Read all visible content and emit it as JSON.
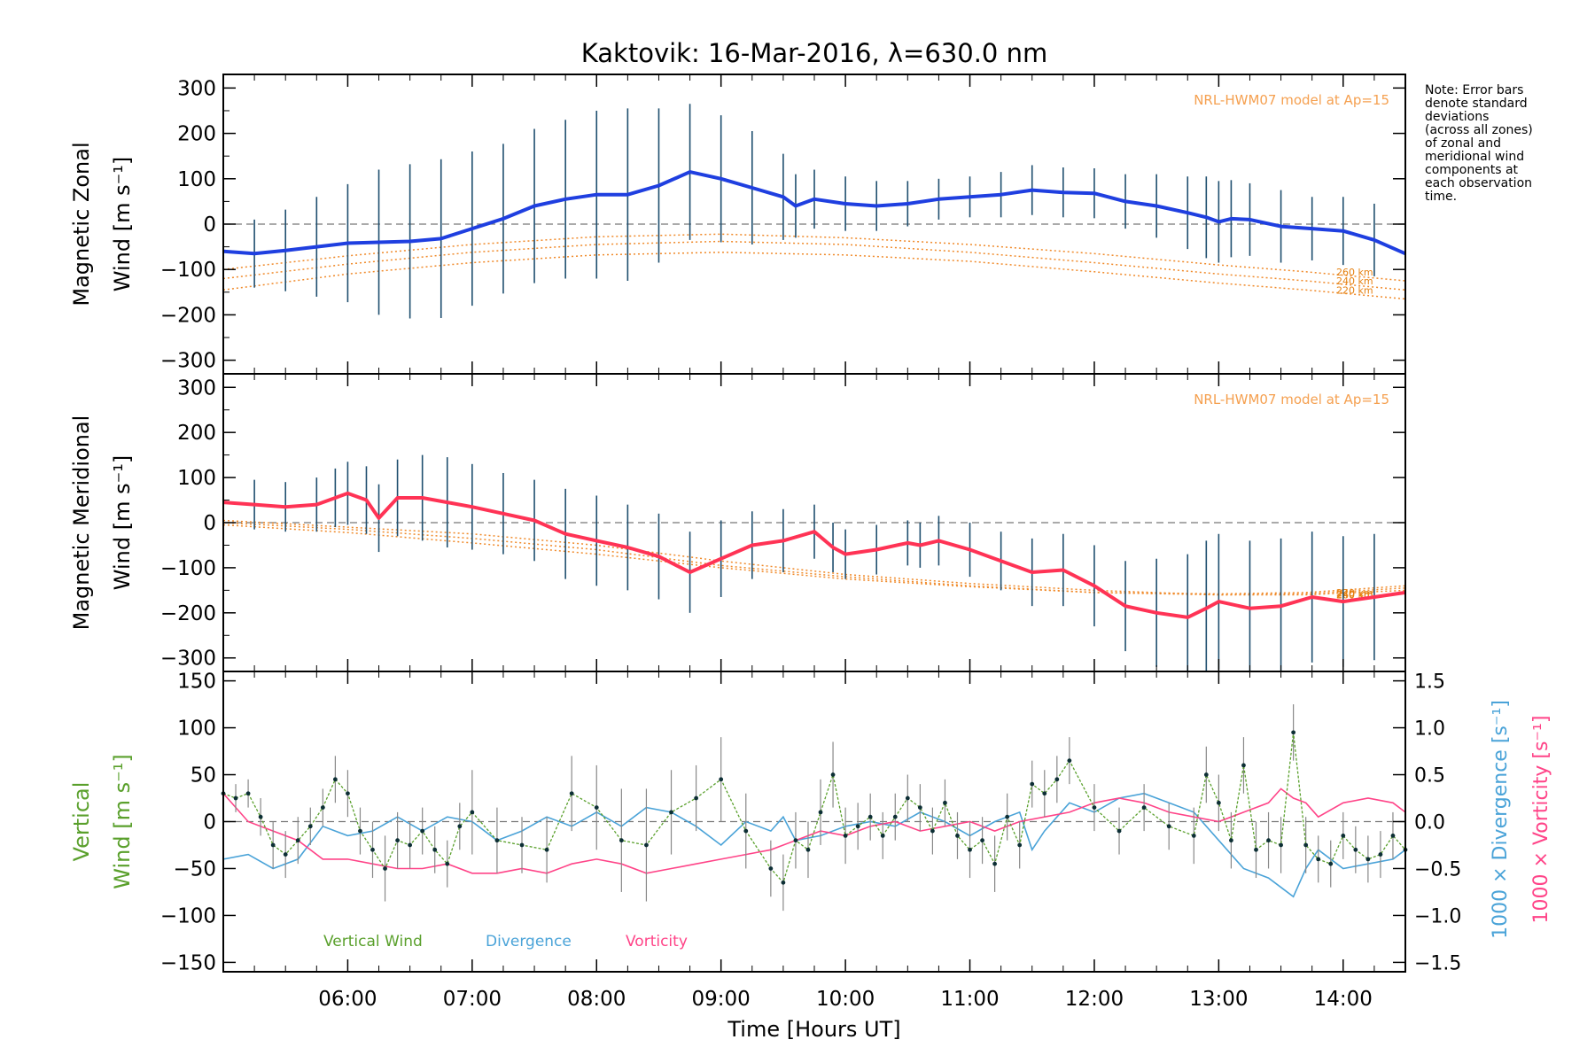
{
  "chart_data": {
    "type": "line",
    "title": "Kaktovik: 16-Mar-2016, λ=630.0 nm",
    "xlabel": "Time [Hours UT]",
    "x_ticks": [
      "06:00",
      "07:00",
      "08:00",
      "09:00",
      "10:00",
      "11:00",
      "12:00",
      "13:00",
      "14:00"
    ],
    "x_range": [
      5.0,
      14.5
    ],
    "note": [
      "Note: Error bars",
      "denote standard",
      "deviations",
      "(across all zones)",
      "of zonal and",
      "meridional wind",
      "components at",
      "each observation",
      "time."
    ],
    "panels": [
      {
        "id": "zonal",
        "ylabel": [
          "Magnetic Zonal",
          "Wind [m s⁻¹]"
        ],
        "ylim": [
          -330,
          330
        ],
        "yticks": [
          300,
          200,
          100,
          0,
          -100,
          -200,
          -300
        ],
        "model_label": "NRL-HWM07 model at Ap=15",
        "model_alt_labels": [
          "260 km",
          "240 km",
          "220 km"
        ],
        "series": {
          "color": "#1f3fe0",
          "x": [
            5.0,
            5.25,
            5.5,
            5.75,
            6.0,
            6.25,
            6.5,
            6.75,
            7.0,
            7.25,
            7.5,
            7.75,
            8.0,
            8.25,
            8.5,
            8.75,
            9.0,
            9.25,
            9.5,
            9.6,
            9.75,
            10.0,
            10.25,
            10.5,
            10.75,
            11.0,
            11.25,
            11.5,
            11.75,
            12.0,
            12.25,
            12.5,
            12.75,
            12.9,
            13.0,
            13.1,
            13.25,
            13.5,
            13.75,
            14.0,
            14.25,
            14.5
          ],
          "y": [
            -60,
            -65,
            -58,
            -50,
            -42,
            -40,
            -38,
            -32,
            -10,
            12,
            40,
            55,
            65,
            65,
            85,
            115,
            100,
            80,
            60,
            40,
            55,
            45,
            40,
            45,
            55,
            60,
            65,
            75,
            70,
            68,
            50,
            40,
            25,
            15,
            5,
            12,
            10,
            -5,
            -10,
            -15,
            -35,
            -65
          ],
          "err": [
            70,
            75,
            90,
            110,
            130,
            160,
            170,
            175,
            170,
            165,
            170,
            175,
            185,
            190,
            170,
            150,
            140,
            125,
            95,
            70,
            65,
            60,
            55,
            50,
            45,
            45,
            50,
            55,
            55,
            55,
            60,
            70,
            80,
            90,
            90,
            85,
            80,
            80,
            70,
            75,
            80,
            85
          ]
        },
        "model_curves": [
          {
            "alt": "260 km",
            "x": [
              5.0,
              6.0,
              7.0,
              8.0,
              9.0,
              10.0,
              11.0,
              12.0,
              13.0,
              13.7,
              14.5
            ],
            "y": [
              -100,
              -70,
              -45,
              -28,
              -22,
              -30,
              -45,
              -65,
              -90,
              -105,
              -125
            ]
          },
          {
            "alt": "240 km",
            "x": [
              5.0,
              6.0,
              7.0,
              8.0,
              9.0,
              10.0,
              11.0,
              12.0,
              13.0,
              13.7,
              14.5
            ],
            "y": [
              -120,
              -88,
              -62,
              -45,
              -38,
              -45,
              -62,
              -85,
              -110,
              -125,
              -145
            ]
          },
          {
            "alt": "220 km",
            "x": [
              5.0,
              6.0,
              7.0,
              8.0,
              9.0,
              10.0,
              11.0,
              12.0,
              13.0,
              13.7,
              14.5
            ],
            "y": [
              -145,
              -110,
              -85,
              -68,
              -62,
              -68,
              -82,
              -105,
              -130,
              -145,
              -165
            ]
          }
        ]
      },
      {
        "id": "meridional",
        "ylabel": [
          "Magnetic Meridional",
          "Wind [m s⁻¹]"
        ],
        "ylim": [
          -330,
          330
        ],
        "yticks": [
          300,
          200,
          100,
          0,
          -100,
          -200,
          -300
        ],
        "model_label": "NRL-HWM07 model at Ap=15",
        "model_alt_labels": [
          "260 km",
          "240 km",
          "220 km"
        ],
        "series": {
          "color": "#ff3355",
          "x": [
            5.0,
            5.25,
            5.5,
            5.75,
            5.9,
            6.0,
            6.15,
            6.25,
            6.4,
            6.6,
            6.8,
            7.0,
            7.25,
            7.5,
            7.75,
            8.0,
            8.25,
            8.5,
            8.75,
            9.0,
            9.25,
            9.5,
            9.75,
            9.9,
            10.0,
            10.25,
            10.5,
            10.6,
            10.75,
            11.0,
            11.25,
            11.5,
            11.75,
            12.0,
            12.25,
            12.5,
            12.75,
            12.9,
            13.0,
            13.25,
            13.5,
            13.75,
            14.0,
            14.25,
            14.5
          ],
          "y": [
            45,
            40,
            35,
            40,
            55,
            65,
            50,
            10,
            55,
            55,
            45,
            35,
            20,
            5,
            -25,
            -40,
            -55,
            -75,
            -110,
            -80,
            -50,
            -40,
            -20,
            -55,
            -70,
            -60,
            -45,
            -50,
            -40,
            -60,
            -85,
            -110,
            -105,
            -140,
            -185,
            -200,
            -210,
            -190,
            -175,
            -190,
            -185,
            -165,
            -175,
            -165,
            -155
          ],
          "err": [
            50,
            55,
            55,
            60,
            65,
            70,
            75,
            75,
            85,
            95,
            100,
            95,
            90,
            90,
            100,
            100,
            95,
            95,
            90,
            85,
            75,
            70,
            60,
            55,
            55,
            55,
            50,
            50,
            55,
            60,
            65,
            75,
            80,
            90,
            100,
            120,
            140,
            150,
            150,
            150,
            150,
            145,
            145,
            140,
            140
          ]
        },
        "model_curves": [
          {
            "alt": "260 km",
            "x": [
              5.0,
              6.0,
              7.0,
              8.0,
              9.0,
              10.0,
              11.0,
              12.0,
              13.0,
              13.7,
              14.5
            ],
            "y": [
              5,
              -10,
              -25,
              -50,
              -85,
              -115,
              -135,
              -150,
              -160,
              -160,
              -150
            ]
          },
          {
            "alt": "240 km",
            "x": [
              5.0,
              6.0,
              7.0,
              8.0,
              9.0,
              10.0,
              11.0,
              12.0,
              13.0,
              13.7,
              14.5
            ],
            "y": [
              0,
              -15,
              -35,
              -60,
              -95,
              -120,
              -140,
              -155,
              -160,
              -158,
              -145
            ]
          },
          {
            "alt": "220 km",
            "x": [
              5.0,
              6.0,
              7.0,
              8.0,
              9.0,
              10.0,
              11.0,
              12.0,
              13.0,
              13.7,
              14.5
            ],
            "y": [
              -5,
              -22,
              -45,
              -70,
              -100,
              -125,
              -142,
              -155,
              -158,
              -155,
              -140
            ]
          }
        ]
      },
      {
        "id": "vertical",
        "ylabel_left": [
          "Vertical",
          "Wind [m s⁻¹]"
        ],
        "ylabel_right_1": "1000 × Divergence [s⁻¹]",
        "ylabel_right_2": "1000 × Vorticity [s⁻¹]",
        "ylim": [
          -160,
          160
        ],
        "yticks": [
          150,
          100,
          50,
          0,
          -50,
          -100,
          -150
        ],
        "ylim_right": [
          -1.6,
          1.6
        ],
        "yticks_right": [
          1.5,
          1.0,
          0.5,
          0.0,
          -0.5,
          -1.0,
          -1.5
        ],
        "yticks_right_labels": [
          "1.5",
          "1.0",
          "0.5",
          "0.0",
          "−0.5",
          "−1.0",
          "−1.5"
        ],
        "legend": [
          "Vertical Wind",
          "Divergence",
          "Vorticity"
        ],
        "colors": {
          "vertical": "#5aa02c",
          "divergence": "#4aa3d8",
          "vorticity": "#ff4488"
        },
        "vertical": {
          "x": [
            5.0,
            5.1,
            5.2,
            5.3,
            5.4,
            5.5,
            5.6,
            5.7,
            5.8,
            5.9,
            6.0,
            6.1,
            6.2,
            6.3,
            6.4,
            6.5,
            6.6,
            6.7,
            6.8,
            6.9,
            7.0,
            7.2,
            7.4,
            7.6,
            7.8,
            8.0,
            8.2,
            8.4,
            8.6,
            8.8,
            9.0,
            9.2,
            9.4,
            9.5,
            9.6,
            9.7,
            9.8,
            9.9,
            10.0,
            10.1,
            10.2,
            10.3,
            10.4,
            10.5,
            10.6,
            10.7,
            10.8,
            10.9,
            11.0,
            11.1,
            11.2,
            11.3,
            11.4,
            11.5,
            11.6,
            11.7,
            11.8,
            12.0,
            12.2,
            12.4,
            12.6,
            12.8,
            12.9,
            13.0,
            13.1,
            13.2,
            13.3,
            13.4,
            13.5,
            13.6,
            13.7,
            13.8,
            13.9,
            14.0,
            14.1,
            14.2,
            14.3,
            14.4,
            14.5
          ],
          "y": [
            30,
            25,
            30,
            5,
            -25,
            -35,
            -20,
            -5,
            15,
            45,
            30,
            -10,
            -30,
            -50,
            -20,
            -25,
            -10,
            -30,
            -45,
            -5,
            10,
            -20,
            -25,
            -30,
            30,
            15,
            -20,
            -25,
            10,
            25,
            45,
            -10,
            -50,
            -65,
            -20,
            -30,
            10,
            50,
            -15,
            -5,
            5,
            -15,
            5,
            25,
            15,
            -10,
            20,
            -15,
            -30,
            -20,
            -45,
            5,
            -25,
            40,
            30,
            45,
            65,
            15,
            -10,
            15,
            -5,
            -15,
            50,
            20,
            -20,
            60,
            -30,
            -20,
            -25,
            95,
            -25,
            -40,
            -45,
            -15,
            -30,
            -40,
            -35,
            -15,
            -30
          ],
          "err": [
            15,
            15,
            15,
            20,
            25,
            25,
            25,
            20,
            20,
            25,
            25,
            25,
            30,
            35,
            30,
            25,
            25,
            25,
            25,
            25,
            45,
            35,
            30,
            35,
            40,
            45,
            55,
            60,
            45,
            35,
            45,
            40,
            30,
            30,
            30,
            30,
            35,
            35,
            30,
            25,
            25,
            25,
            25,
            25,
            25,
            25,
            25,
            25,
            30,
            25,
            30,
            25,
            25,
            25,
            25,
            25,
            25,
            25,
            25,
            25,
            25,
            30,
            30,
            30,
            30,
            30,
            30,
            30,
            30,
            30,
            30,
            25,
            25,
            25,
            25,
            25,
            25,
            25,
            25
          ]
        },
        "divergence": {
          "x": [
            5.0,
            5.2,
            5.4,
            5.6,
            5.8,
            6.0,
            6.2,
            6.4,
            6.6,
            6.8,
            7.0,
            7.2,
            7.4,
            7.6,
            7.8,
            8.0,
            8.2,
            8.4,
            8.6,
            8.8,
            9.0,
            9.2,
            9.4,
            9.5,
            9.6,
            9.8,
            10.0,
            10.2,
            10.4,
            10.6,
            10.8,
            11.0,
            11.2,
            11.4,
            11.5,
            11.6,
            11.8,
            12.0,
            12.2,
            12.4,
            12.6,
            12.8,
            13.0,
            13.2,
            13.4,
            13.5,
            13.6,
            13.7,
            13.8,
            14.0,
            14.2,
            14.4,
            14.5
          ],
          "y": [
            -0.4,
            -0.35,
            -0.5,
            -0.4,
            -0.05,
            -0.15,
            -0.1,
            0.05,
            -0.1,
            0.05,
            0.0,
            -0.2,
            -0.1,
            0.05,
            -0.05,
            0.1,
            -0.05,
            0.15,
            0.1,
            -0.05,
            -0.25,
            0.0,
            -0.1,
            0.05,
            -0.2,
            -0.15,
            -0.05,
            0.0,
            -0.05,
            0.1,
            0.0,
            -0.15,
            0.0,
            0.1,
            -0.3,
            -0.1,
            0.2,
            0.1,
            0.25,
            0.3,
            0.2,
            0.1,
            -0.2,
            -0.5,
            -0.6,
            -0.7,
            -0.8,
            -0.5,
            -0.3,
            -0.5,
            -0.45,
            -0.4,
            -0.3
          ]
        },
        "vorticity": {
          "x": [
            5.0,
            5.2,
            5.4,
            5.6,
            5.8,
            6.0,
            6.2,
            6.4,
            6.6,
            6.8,
            7.0,
            7.2,
            7.4,
            7.6,
            7.8,
            8.0,
            8.2,
            8.4,
            8.6,
            8.8,
            9.0,
            9.2,
            9.4,
            9.6,
            9.8,
            10.0,
            10.2,
            10.4,
            10.6,
            10.8,
            11.0,
            11.2,
            11.4,
            11.6,
            11.8,
            12.0,
            12.2,
            12.4,
            12.6,
            12.8,
            13.0,
            13.2,
            13.4,
            13.5,
            13.6,
            13.7,
            13.8,
            14.0,
            14.2,
            14.4,
            14.5
          ],
          "y": [
            0.3,
            0.0,
            -0.1,
            -0.2,
            -0.4,
            -0.4,
            -0.45,
            -0.5,
            -0.5,
            -0.45,
            -0.55,
            -0.55,
            -0.5,
            -0.55,
            -0.45,
            -0.4,
            -0.45,
            -0.55,
            -0.5,
            -0.45,
            -0.4,
            -0.35,
            -0.3,
            -0.2,
            -0.1,
            -0.15,
            -0.05,
            0.0,
            -0.1,
            -0.05,
            0.0,
            -0.1,
            0.0,
            0.05,
            0.1,
            0.2,
            0.25,
            0.2,
            0.1,
            0.05,
            0.0,
            0.1,
            0.2,
            0.35,
            0.25,
            0.2,
            0.05,
            0.2,
            0.25,
            0.2,
            0.1
          ]
        }
      }
    ]
  }
}
